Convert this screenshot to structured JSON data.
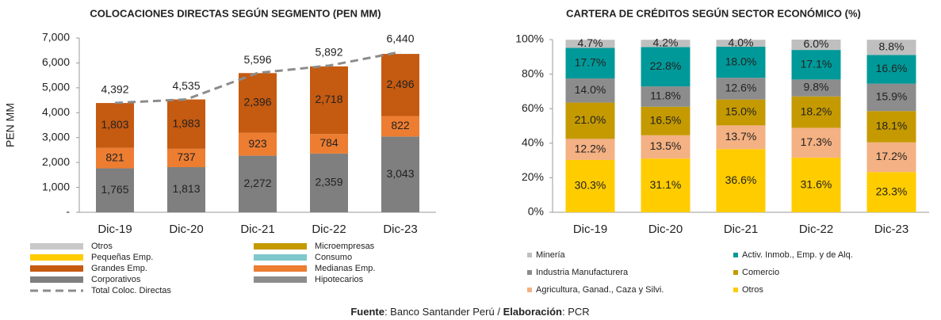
{
  "chart_data": [
    {
      "type": "bar",
      "stacked": true,
      "title": "COLOCACIONES DIRECTAS SEGÚN SEGMENTO (PEN MM)",
      "y_label": "PEN MM",
      "categories": [
        "Dic-19",
        "Dic-20",
        "Dic-21",
        "Dic-22",
        "Dic-23"
      ],
      "ylim": [
        0,
        7000
      ],
      "yticks": [
        {
          "value": 0,
          "label": "-"
        },
        {
          "value": 1000,
          "label": "1,000"
        },
        {
          "value": 2000,
          "label": "2,000"
        },
        {
          "value": 3000,
          "label": "3,000"
        },
        {
          "value": 4000,
          "label": "4,000"
        },
        {
          "value": 5000,
          "label": "5,000"
        },
        {
          "value": 6000,
          "label": "6,000"
        },
        {
          "value": 7000,
          "label": "7,000"
        }
      ],
      "series": [
        {
          "name": "Otros",
          "color": "#c8c8c8",
          "values": [
            null,
            null,
            null,
            null,
            null
          ]
        },
        {
          "name": "Microempresas",
          "color": "#c49a00",
          "values": [
            null,
            null,
            null,
            null,
            null
          ]
        },
        {
          "name": "Pequeñas Emp.",
          "color": "#ffcc00",
          "values": [
            null,
            null,
            null,
            null,
            null
          ]
        },
        {
          "name": "Consumo",
          "color": "#7fc8cc",
          "values": [
            null,
            null,
            null,
            null,
            null
          ]
        },
        {
          "name": "Grandes Emp.",
          "color": "#c55a11",
          "values": [
            1803,
            1983,
            2396,
            2718,
            2496
          ],
          "value_labels": [
            "1,803",
            "1,983",
            "2,396",
            "2,718",
            "2,496"
          ]
        },
        {
          "name": "Medianas Emp.",
          "color": "#ed7d31",
          "values": [
            821,
            737,
            923,
            784,
            822
          ]
        },
        {
          "name": "Corporativos",
          "color": "#7f7f7f",
          "values": [
            1765,
            1813,
            2272,
            2359,
            3043
          ],
          "value_labels": [
            "1,765",
            "1,813",
            "2,272",
            "2,359",
            "3,043"
          ]
        },
        {
          "name": "Hipotecarios",
          "color": "#8c8c8c",
          "values": [
            null,
            null,
            null,
            null,
            null
          ]
        },
        {
          "name": "Total Coloc. Directas",
          "color": "#8c8c8c",
          "kind": "line",
          "dashed": true,
          "values": [
            4392,
            4535,
            5596,
            5892,
            6440
          ],
          "value_labels": [
            "4,392",
            "4,535",
            "5,596",
            "5,892",
            "6,440"
          ]
        }
      ]
    },
    {
      "type": "bar",
      "stacked": true,
      "title": "CARTERA DE CRÉDITOS SEGÚN SECTOR ECONÓMICO (%)",
      "categories": [
        "Dic-19",
        "Dic-20",
        "Dic-21",
        "Dic-22",
        "Dic-23"
      ],
      "ylim": [
        0,
        100
      ],
      "yticks": [
        {
          "value": 0,
          "label": "0%"
        },
        {
          "value": 20,
          "label": "20%"
        },
        {
          "value": 40,
          "label": "40%"
        },
        {
          "value": 60,
          "label": "60%"
        },
        {
          "value": 80,
          "label": "80%"
        },
        {
          "value": 100,
          "label": "100%"
        }
      ],
      "series": [
        {
          "name": "Minería",
          "color": "#bfbfbf",
          "values": [
            4.7,
            4.2,
            4.0,
            6.0,
            8.8
          ],
          "value_labels": [
            "4.7%",
            "4.2%",
            "4.0%",
            "6.0%",
            "8.8%"
          ]
        },
        {
          "name": "Activ. Inmob., Emp. y de Alq.",
          "color": "#009999",
          "values": [
            17.7,
            22.8,
            18.0,
            17.1,
            16.6
          ],
          "value_labels": [
            "17.7%",
            "22.8%",
            "18.0%",
            "17.1%",
            "16.6%"
          ]
        },
        {
          "name": "Industria Manufacturera",
          "color": "#8c8c8c",
          "values": [
            14.0,
            11.8,
            12.6,
            9.8,
            15.9
          ],
          "value_labels": [
            "14.0%",
            "11.8%",
            "12.6%",
            "9.8%",
            "15.9%"
          ]
        },
        {
          "name": "Comercio",
          "color": "#c49a00",
          "values": [
            21.0,
            16.5,
            15.0,
            18.2,
            18.1
          ],
          "value_labels": [
            "21.0%",
            "16.5%",
            "15.0%",
            "18.2%",
            "18.1%"
          ]
        },
        {
          "name": "Agricultura, Ganad., Caza y Silvi.",
          "color": "#f4b183",
          "values": [
            12.2,
            13.5,
            13.7,
            17.3,
            17.2
          ],
          "value_labels": [
            "12.2%",
            "13.5%",
            "13.7%",
            "17.3%",
            "17.2%"
          ]
        },
        {
          "name": "Otros",
          "color": "#ffcc00",
          "values": [
            30.3,
            31.1,
            36.6,
            31.6,
            23.3
          ],
          "value_labels": [
            "30.3%",
            "31.1%",
            "36.6%",
            "31.6%",
            "23.3%"
          ]
        }
      ]
    }
  ],
  "source": {
    "label1": "Fuente",
    "text1": ": Banco Santander Perú / ",
    "label2": "Elaboración",
    "text2": ": PCR"
  }
}
